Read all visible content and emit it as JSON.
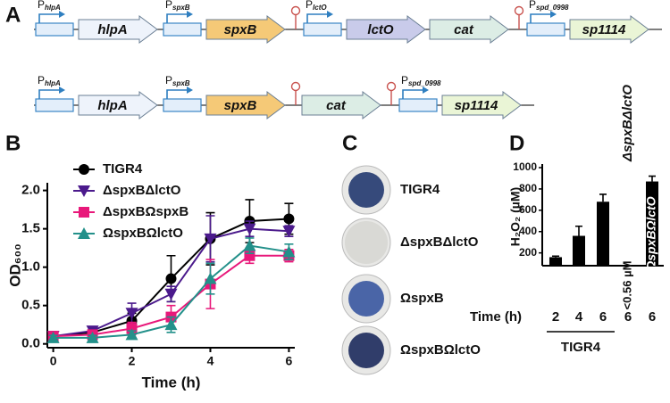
{
  "panel_labels": [
    "A",
    "B",
    "C",
    "D"
  ],
  "gene_maps": [
    [
      {
        "promoter": "P",
        "sub": "hlpA"
      },
      {
        "gene": "hlpA",
        "color": "#eef3fb"
      },
      {
        "promoter": "P",
        "sub": "spxB"
      },
      {
        "gene": "spxB",
        "color": "#f5c977"
      },
      {
        "terminator": true
      },
      {
        "promoter": "P",
        "sub": "lctO"
      },
      {
        "gene": "lctO",
        "color": "#c9cbea"
      },
      {
        "gene": "cat",
        "color": "#dcede5"
      },
      {
        "terminator": true
      },
      {
        "promoter": "P",
        "sub": "spd_0998"
      },
      {
        "gene": "sp1114",
        "color": "#eaf5d6"
      }
    ],
    [
      {
        "promoter": "P",
        "sub": "hlpA"
      },
      {
        "gene": "hlpA",
        "color": "#eef3fb"
      },
      {
        "promoter": "P",
        "sub": "spxB"
      },
      {
        "gene": "spxB",
        "color": "#f5c977"
      },
      {
        "terminator": true
      },
      {
        "gene": "cat",
        "color": "#dcede5"
      },
      {
        "terminator": true
      },
      {
        "promoter": "P",
        "sub": "spd_0998"
      },
      {
        "gene": "sp1114",
        "color": "#eaf5d6"
      }
    ]
  ],
  "plates": [
    {
      "label": "TIGR4",
      "color": "#22386f"
    },
    {
      "label": "ΔspxBΔlctO",
      "color": "#cfcfca"
    },
    {
      "label": "ΩspxB",
      "color": "#3856a0"
    },
    {
      "label": "ΩspxBΩlctO",
      "color": "#1c2a5c"
    }
  ],
  "chart_data": [
    {
      "type": "line",
      "xlabel": "Time (h)",
      "ylabel": "OD₆₀₀",
      "x": [
        0,
        1,
        2,
        3,
        4,
        5,
        6
      ],
      "xlim": [
        -0.15,
        6.15
      ],
      "xticks": [
        0,
        2,
        4,
        6
      ],
      "ylim": [
        -0.05,
        2.1
      ],
      "yticks": [
        {
          "value": 0,
          "label": "0.0"
        },
        {
          "value": 0.5,
          "label": "0.5"
        },
        {
          "value": 1,
          "label": "1.0"
        },
        {
          "value": 1.5,
          "label": "1.5"
        },
        {
          "value": 2,
          "label": "2.0"
        }
      ],
      "legend": "upper left",
      "series": [
        {
          "name": "TIGR4",
          "color": "#000000",
          "marker": "circle",
          "values": [
            0.1,
            0.15,
            0.3,
            0.85,
            1.37,
            1.6,
            1.63
          ],
          "errors": [
            0.05,
            0.05,
            0.1,
            0.3,
            0.34,
            0.28,
            0.2
          ]
        },
        {
          "name": "ΔspxBΔlctO",
          "color": "#4b1a8c",
          "marker": "triangle-down",
          "values": [
            0.1,
            0.17,
            0.4,
            0.65,
            1.37,
            1.5,
            1.47
          ],
          "errors": [
            0.05,
            0.05,
            0.13,
            0.1,
            0.3,
            0.1,
            0.07
          ]
        },
        {
          "name": "ΔspxBΩspxB",
          "color": "#e8187a",
          "marker": "square",
          "values": [
            0.1,
            0.12,
            0.2,
            0.35,
            0.78,
            1.15,
            1.15
          ],
          "errors": [
            0.03,
            0.03,
            0.08,
            0.15,
            0.32,
            0.1,
            0.08
          ]
        },
        {
          "name": "ΩspxBΩlctO",
          "color": "#23908a",
          "marker": "triangle-up",
          "values": [
            0.08,
            0.08,
            0.12,
            0.25,
            0.85,
            1.28,
            1.2
          ],
          "errors": [
            0.03,
            0.03,
            0.05,
            0.1,
            0.2,
            0.1,
            0.1
          ]
        }
      ]
    },
    {
      "type": "bar",
      "xlabel": "Time (h)",
      "ylabel": "H₂O₂ (µM)",
      "categories": [
        "2",
        "4",
        "6",
        "6",
        "6"
      ],
      "values": [
        160,
        360,
        680,
        null,
        870
      ],
      "errors": [
        10,
        90,
        70,
        null,
        50
      ],
      "color": "#000000",
      "ylim": [
        80,
        1000
      ],
      "yticks": [
        200,
        400,
        600,
        800,
        1000
      ],
      "group_label": "TIGR4",
      "annotations": [
        "<0.56 µM"
      ],
      "strain_labels": [
        "ΔspxBΔlctO",
        "ΩspxBΩlctO"
      ]
    }
  ]
}
